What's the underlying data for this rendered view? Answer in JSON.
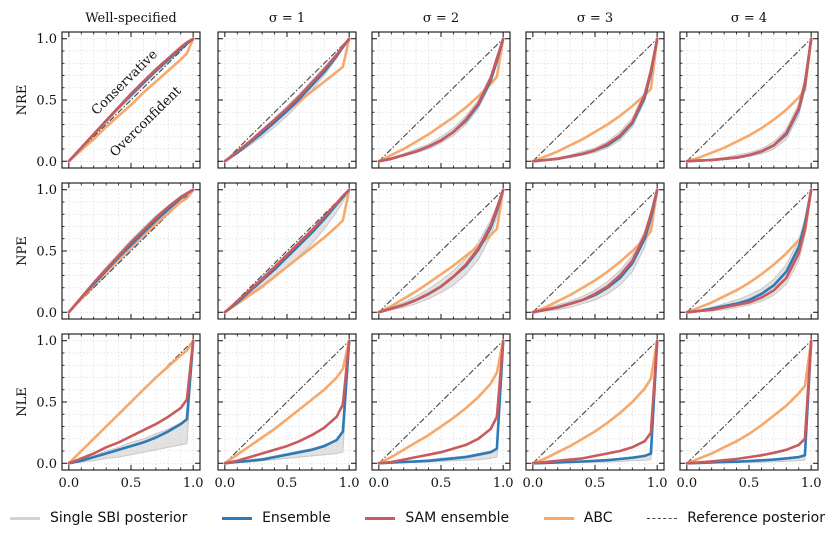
{
  "chart_data": {
    "type": "line",
    "columns": [
      "Well-specified",
      "σ = 1",
      "σ = 2",
      "σ = 3",
      "σ = 4"
    ],
    "rows": [
      "NRE",
      "NPE",
      "NLE"
    ],
    "x_ticks": [
      "0.0",
      "0.5",
      "1.0"
    ],
    "y_ticks": [
      "0.0",
      "0.5",
      "1.0"
    ],
    "xlim": [
      0,
      1
    ],
    "ylim": [
      0,
      1
    ],
    "annotations": [
      "Conservative",
      "Overconfident"
    ],
    "series": [
      {
        "name": "Single SBI posterior",
        "color": "#d3d3d3"
      },
      {
        "name": "Ensemble",
        "color": "#2f7ab6"
      },
      {
        "name": "SAM ensemble",
        "color": "#c95a5e"
      },
      {
        "name": "ABC",
        "color": "#f6a96a"
      },
      {
        "name": "Reference posterior",
        "color": "#444444"
      }
    ],
    "x": [
      0.0,
      0.1,
      0.2,
      0.3,
      0.4,
      0.5,
      0.6,
      0.7,
      0.8,
      0.9,
      0.95,
      1.0
    ],
    "panels": [
      [
        {
          "ensemble": [
            0,
            0.11,
            0.22,
            0.33,
            0.44,
            0.54,
            0.64,
            0.74,
            0.83,
            0.92,
            0.96,
            1.0
          ],
          "sam": [
            0,
            0.11,
            0.22,
            0.33,
            0.44,
            0.55,
            0.65,
            0.75,
            0.84,
            0.93,
            0.97,
            1.0
          ],
          "abc": [
            0,
            0.09,
            0.18,
            0.28,
            0.37,
            0.46,
            0.56,
            0.65,
            0.74,
            0.83,
            0.88,
            1.0
          ],
          "single_low": [
            0,
            0.1,
            0.21,
            0.31,
            0.42,
            0.52,
            0.62,
            0.72,
            0.81,
            0.9,
            0.95,
            1.0
          ],
          "single_high": [
            0,
            0.12,
            0.23,
            0.34,
            0.45,
            0.56,
            0.66,
            0.76,
            0.85,
            0.94,
            0.97,
            1.0
          ]
        },
        {
          "ensemble": [
            0,
            0.07,
            0.15,
            0.23,
            0.32,
            0.41,
            0.51,
            0.62,
            0.73,
            0.86,
            0.93,
            1.0
          ],
          "sam": [
            0,
            0.08,
            0.16,
            0.25,
            0.34,
            0.43,
            0.53,
            0.64,
            0.75,
            0.87,
            0.94,
            1.0
          ],
          "abc": [
            0,
            0.08,
            0.16,
            0.24,
            0.33,
            0.41,
            0.49,
            0.57,
            0.65,
            0.73,
            0.77,
            1.0
          ],
          "single_low": [
            0,
            0.06,
            0.13,
            0.2,
            0.28,
            0.37,
            0.47,
            0.58,
            0.7,
            0.84,
            0.92,
            1.0
          ],
          "single_high": [
            0,
            0.09,
            0.17,
            0.26,
            0.35,
            0.45,
            0.55,
            0.66,
            0.77,
            0.88,
            0.95,
            1.0
          ]
        },
        {
          "ensemble": [
            0,
            0.02,
            0.05,
            0.08,
            0.12,
            0.17,
            0.24,
            0.33,
            0.46,
            0.66,
            0.82,
            1.0
          ],
          "sam": [
            0,
            0.02,
            0.05,
            0.08,
            0.12,
            0.17,
            0.24,
            0.34,
            0.47,
            0.68,
            0.84,
            1.0
          ],
          "abc": [
            0,
            0.05,
            0.1,
            0.16,
            0.22,
            0.29,
            0.36,
            0.44,
            0.53,
            0.63,
            0.69,
            1.0
          ],
          "single_low": [
            0,
            0.02,
            0.04,
            0.07,
            0.1,
            0.15,
            0.21,
            0.3,
            0.43,
            0.63,
            0.8,
            1.0
          ],
          "single_high": [
            0,
            0.03,
            0.06,
            0.1,
            0.14,
            0.2,
            0.27,
            0.37,
            0.5,
            0.7,
            0.85,
            1.0
          ]
        },
        {
          "ensemble": [
            0,
            0.01,
            0.02,
            0.04,
            0.06,
            0.09,
            0.13,
            0.2,
            0.31,
            0.52,
            0.72,
            1.0
          ],
          "sam": [
            0,
            0.01,
            0.02,
            0.04,
            0.06,
            0.09,
            0.14,
            0.21,
            0.32,
            0.54,
            0.74,
            1.0
          ],
          "abc": [
            0,
            0.04,
            0.08,
            0.13,
            0.18,
            0.24,
            0.3,
            0.37,
            0.45,
            0.54,
            0.59,
            1.0
          ],
          "single_low": [
            0,
            0.01,
            0.02,
            0.03,
            0.05,
            0.07,
            0.11,
            0.17,
            0.28,
            0.49,
            0.7,
            1.0
          ],
          "single_high": [
            0,
            0.01,
            0.03,
            0.05,
            0.08,
            0.11,
            0.16,
            0.24,
            0.35,
            0.57,
            0.76,
            1.0
          ]
        },
        {
          "ensemble": [
            0,
            0.005,
            0.01,
            0.02,
            0.03,
            0.05,
            0.08,
            0.13,
            0.22,
            0.42,
            0.62,
            1.0
          ],
          "sam": [
            0,
            0.005,
            0.01,
            0.02,
            0.03,
            0.05,
            0.08,
            0.13,
            0.23,
            0.43,
            0.64,
            1.0
          ],
          "abc": [
            0,
            0.03,
            0.07,
            0.11,
            0.16,
            0.21,
            0.27,
            0.34,
            0.42,
            0.52,
            0.58,
            1.0
          ],
          "single_low": [
            0,
            0.003,
            0.007,
            0.014,
            0.02,
            0.04,
            0.06,
            0.1,
            0.18,
            0.37,
            0.58,
            1.0
          ],
          "single_high": [
            0,
            0.008,
            0.017,
            0.03,
            0.05,
            0.07,
            0.1,
            0.16,
            0.26,
            0.47,
            0.68,
            1.0
          ]
        }
      ],
      [
        {
          "ensemble": [
            0,
            0.12,
            0.23,
            0.34,
            0.45,
            0.55,
            0.65,
            0.75,
            0.84,
            0.93,
            0.97,
            1.0
          ],
          "sam": [
            0,
            0.12,
            0.24,
            0.35,
            0.46,
            0.57,
            0.67,
            0.77,
            0.86,
            0.94,
            0.97,
            1.0
          ],
          "abc": [
            0,
            0.11,
            0.22,
            0.33,
            0.43,
            0.53,
            0.63,
            0.72,
            0.81,
            0.9,
            0.93,
            1.0
          ],
          "single_low": [
            0,
            0.1,
            0.2,
            0.3,
            0.41,
            0.51,
            0.61,
            0.71,
            0.81,
            0.9,
            0.95,
            1.0
          ],
          "single_high": [
            0,
            0.13,
            0.25,
            0.37,
            0.48,
            0.59,
            0.69,
            0.79,
            0.87,
            0.95,
            0.98,
            1.0
          ]
        },
        {
          "ensemble": [
            0,
            0.08,
            0.17,
            0.26,
            0.35,
            0.45,
            0.55,
            0.65,
            0.76,
            0.88,
            0.94,
            1.0
          ],
          "sam": [
            0,
            0.09,
            0.18,
            0.27,
            0.37,
            0.47,
            0.57,
            0.67,
            0.78,
            0.89,
            0.95,
            1.0
          ],
          "abc": [
            0,
            0.07,
            0.14,
            0.21,
            0.29,
            0.37,
            0.45,
            0.53,
            0.61,
            0.7,
            0.75,
            1.0
          ],
          "single_low": [
            0,
            0.06,
            0.13,
            0.2,
            0.28,
            0.37,
            0.46,
            0.56,
            0.68,
            0.82,
            0.9,
            1.0
          ],
          "single_high": [
            0,
            0.1,
            0.19,
            0.29,
            0.38,
            0.48,
            0.58,
            0.68,
            0.79,
            0.9,
            0.95,
            1.0
          ]
        },
        {
          "ensemble": [
            0,
            0.03,
            0.06,
            0.1,
            0.15,
            0.21,
            0.29,
            0.38,
            0.51,
            0.69,
            0.83,
            1.0
          ],
          "sam": [
            0,
            0.03,
            0.06,
            0.1,
            0.15,
            0.21,
            0.29,
            0.39,
            0.52,
            0.71,
            0.85,
            1.0
          ],
          "abc": [
            0,
            0.05,
            0.11,
            0.17,
            0.24,
            0.31,
            0.38,
            0.46,
            0.54,
            0.63,
            0.68,
            1.0
          ],
          "single_low": [
            0,
            0.02,
            0.04,
            0.07,
            0.11,
            0.16,
            0.22,
            0.31,
            0.43,
            0.62,
            0.78,
            1.0
          ],
          "single_high": [
            0,
            0.04,
            0.08,
            0.13,
            0.19,
            0.26,
            0.34,
            0.44,
            0.57,
            0.75,
            0.87,
            1.0
          ]
        },
        {
          "ensemble": [
            0,
            0.02,
            0.04,
            0.07,
            0.1,
            0.14,
            0.2,
            0.28,
            0.4,
            0.6,
            0.77,
            1.0
          ],
          "sam": [
            0,
            0.02,
            0.04,
            0.07,
            0.1,
            0.15,
            0.21,
            0.3,
            0.42,
            0.63,
            0.8,
            1.0
          ],
          "abc": [
            0,
            0.04,
            0.09,
            0.14,
            0.2,
            0.26,
            0.33,
            0.41,
            0.5,
            0.6,
            0.66,
            1.0
          ],
          "single_low": [
            0,
            0.01,
            0.02,
            0.04,
            0.07,
            0.1,
            0.15,
            0.22,
            0.33,
            0.53,
            0.72,
            1.0
          ],
          "single_high": [
            0,
            0.03,
            0.06,
            0.09,
            0.13,
            0.18,
            0.25,
            0.34,
            0.46,
            0.66,
            0.82,
            1.0
          ]
        },
        {
          "ensemble": [
            0,
            0.01,
            0.03,
            0.05,
            0.07,
            0.1,
            0.15,
            0.22,
            0.33,
            0.53,
            0.72,
            1.0
          ],
          "sam": [
            0,
            0.01,
            0.02,
            0.04,
            0.06,
            0.08,
            0.12,
            0.18,
            0.28,
            0.48,
            0.68,
            1.0
          ],
          "abc": [
            0,
            0.04,
            0.08,
            0.13,
            0.18,
            0.24,
            0.31,
            0.39,
            0.48,
            0.59,
            0.65,
            1.0
          ],
          "single_low": [
            0,
            0.005,
            0.01,
            0.02,
            0.04,
            0.06,
            0.09,
            0.14,
            0.23,
            0.42,
            0.62,
            1.0
          ],
          "single_high": [
            0,
            0.02,
            0.04,
            0.07,
            0.1,
            0.14,
            0.19,
            0.27,
            0.39,
            0.59,
            0.77,
            1.0
          ]
        }
      ],
      [
        {
          "ensemble": [
            0,
            0.02,
            0.05,
            0.08,
            0.11,
            0.14,
            0.17,
            0.21,
            0.26,
            0.32,
            0.36,
            1.0
          ],
          "sam": [
            0,
            0.04,
            0.08,
            0.13,
            0.17,
            0.22,
            0.27,
            0.32,
            0.38,
            0.45,
            0.52,
            1.0
          ],
          "abc": [
            0,
            0.1,
            0.2,
            0.3,
            0.4,
            0.5,
            0.6,
            0.7,
            0.79,
            0.88,
            0.92,
            1.0
          ],
          "single_low": [
            0,
            0.01,
            0.02,
            0.04,
            0.05,
            0.07,
            0.09,
            0.11,
            0.13,
            0.15,
            0.16,
            1.0
          ],
          "single_high": [
            0,
            0.03,
            0.06,
            0.1,
            0.13,
            0.17,
            0.2,
            0.24,
            0.28,
            0.33,
            0.36,
            1.0
          ]
        },
        {
          "ensemble": [
            0,
            0.01,
            0.02,
            0.03,
            0.05,
            0.07,
            0.09,
            0.11,
            0.14,
            0.19,
            0.26,
            1.0
          ],
          "sam": [
            0,
            0.02,
            0.05,
            0.08,
            0.11,
            0.14,
            0.18,
            0.23,
            0.29,
            0.38,
            0.48,
            1.0
          ],
          "abc": [
            0,
            0.07,
            0.14,
            0.21,
            0.28,
            0.36,
            0.44,
            0.52,
            0.6,
            0.7,
            0.77,
            1.0
          ],
          "single_low": [
            0,
            0.005,
            0.01,
            0.02,
            0.03,
            0.04,
            0.05,
            0.06,
            0.07,
            0.08,
            0.09,
            1.0
          ],
          "single_high": [
            0,
            0.01,
            0.03,
            0.04,
            0.06,
            0.08,
            0.1,
            0.12,
            0.15,
            0.19,
            0.24,
            1.0
          ]
        },
        {
          "ensemble": [
            0,
            0.005,
            0.01,
            0.015,
            0.02,
            0.03,
            0.04,
            0.05,
            0.07,
            0.09,
            0.12,
            1.0
          ],
          "sam": [
            0,
            0.01,
            0.03,
            0.05,
            0.07,
            0.09,
            0.12,
            0.15,
            0.2,
            0.28,
            0.38,
            1.0
          ],
          "abc": [
            0,
            0.05,
            0.11,
            0.17,
            0.23,
            0.3,
            0.37,
            0.45,
            0.54,
            0.65,
            0.74,
            1.0
          ],
          "single_low": [
            0,
            0.002,
            0.004,
            0.007,
            0.01,
            0.014,
            0.02,
            0.025,
            0.03,
            0.04,
            0.05,
            1.0
          ],
          "single_high": [
            0,
            0.006,
            0.012,
            0.02,
            0.03,
            0.04,
            0.05,
            0.06,
            0.08,
            0.1,
            0.12,
            1.0
          ]
        },
        {
          "ensemble": [
            0,
            0.003,
            0.006,
            0.01,
            0.014,
            0.02,
            0.025,
            0.035,
            0.045,
            0.06,
            0.08,
            1.0
          ],
          "sam": [
            0,
            0.01,
            0.02,
            0.03,
            0.04,
            0.06,
            0.08,
            0.1,
            0.13,
            0.18,
            0.25,
            1.0
          ],
          "abc": [
            0,
            0.04,
            0.09,
            0.14,
            0.2,
            0.26,
            0.33,
            0.41,
            0.5,
            0.61,
            0.69,
            1.0
          ],
          "single_low": [
            0,
            0.001,
            0.002,
            0.004,
            0.006,
            0.008,
            0.01,
            0.014,
            0.02,
            0.025,
            0.03,
            1.0
          ],
          "single_high": [
            0,
            0.004,
            0.008,
            0.012,
            0.018,
            0.025,
            0.032,
            0.04,
            0.05,
            0.065,
            0.08,
            1.0
          ]
        },
        {
          "ensemble": [
            0,
            0.003,
            0.006,
            0.01,
            0.013,
            0.018,
            0.024,
            0.03,
            0.04,
            0.05,
            0.065,
            1.0
          ],
          "sam": [
            0,
            0.007,
            0.015,
            0.025,
            0.035,
            0.05,
            0.065,
            0.085,
            0.11,
            0.15,
            0.2,
            1.0
          ],
          "abc": [
            0,
            0.04,
            0.08,
            0.13,
            0.18,
            0.24,
            0.31,
            0.39,
            0.47,
            0.57,
            0.63,
            1.0
          ],
          "single_low": [
            0,
            0.001,
            0.002,
            0.003,
            0.005,
            0.007,
            0.009,
            0.012,
            0.016,
            0.02,
            0.025,
            1.0
          ],
          "single_high": [
            0,
            0.003,
            0.007,
            0.011,
            0.016,
            0.022,
            0.028,
            0.035,
            0.045,
            0.055,
            0.07,
            1.0
          ]
        }
      ]
    ]
  }
}
